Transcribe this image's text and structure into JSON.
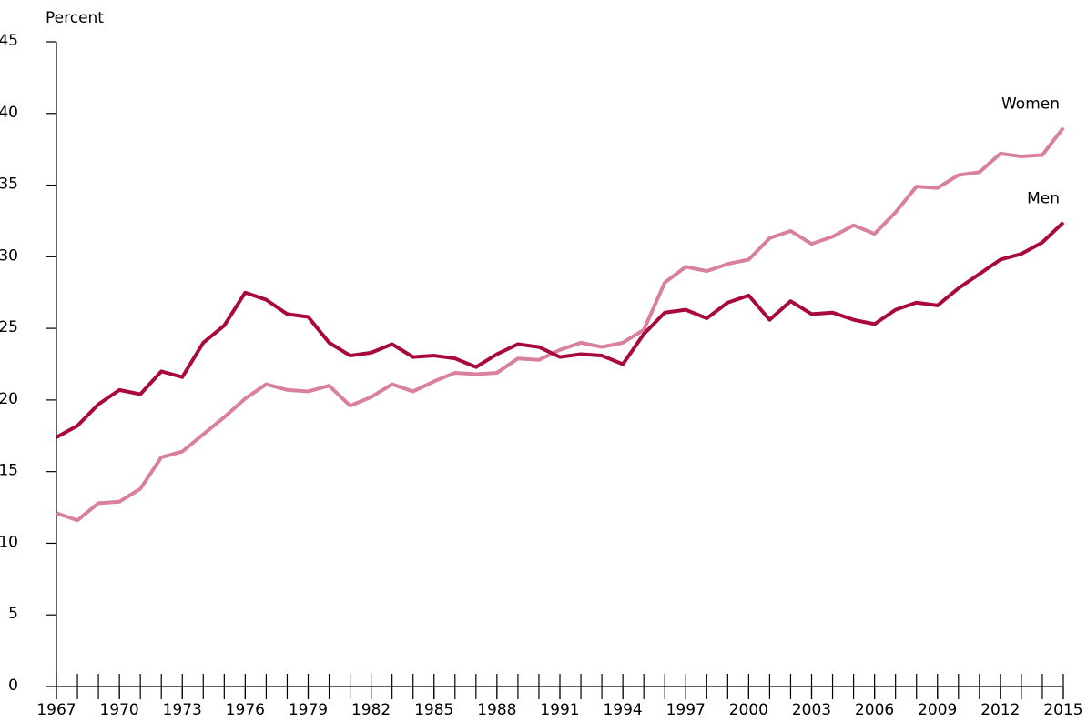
{
  "chart_data": {
    "type": "line",
    "y_label": "Percent",
    "x": [
      1967,
      1968,
      1969,
      1970,
      1971,
      1972,
      1973,
      1974,
      1975,
      1976,
      1977,
      1978,
      1979,
      1980,
      1981,
      1982,
      1983,
      1984,
      1985,
      1986,
      1987,
      1988,
      1989,
      1990,
      1991,
      1992,
      1993,
      1994,
      1995,
      1996,
      1997,
      1998,
      1999,
      2000,
      2001,
      2002,
      2003,
      2004,
      2005,
      2006,
      2007,
      2008,
      2009,
      2010,
      2011,
      2012,
      2013,
      2014,
      2015
    ],
    "series": [
      {
        "name": "Women",
        "color": "#d9809a",
        "values": [
          12.1,
          11.6,
          12.8,
          12.9,
          13.8,
          16.0,
          16.4,
          17.6,
          18.8,
          20.1,
          21.1,
          20.7,
          20.6,
          21.0,
          19.6,
          20.2,
          21.1,
          20.6,
          21.3,
          21.9,
          21.8,
          21.9,
          22.9,
          22.8,
          23.5,
          24.0,
          23.7,
          24.0,
          24.9,
          28.2,
          29.3,
          29.0,
          29.5,
          29.8,
          31.3,
          31.8,
          30.9,
          31.4,
          32.2,
          31.6,
          33.1,
          34.9,
          34.8,
          35.7,
          35.9,
          37.2,
          37.0,
          37.1,
          39.0
        ]
      },
      {
        "name": "Men",
        "color": "#a8083e",
        "values": [
          17.4,
          18.2,
          19.7,
          20.7,
          20.4,
          22.0,
          21.6,
          24.0,
          25.2,
          27.5,
          27.0,
          26.0,
          25.8,
          24.0,
          23.1,
          23.3,
          23.9,
          23.0,
          23.1,
          22.9,
          22.3,
          23.2,
          23.9,
          23.7,
          23.0,
          23.2,
          23.1,
          22.5,
          24.6,
          26.1,
          26.3,
          25.7,
          26.8,
          27.3,
          25.6,
          26.9,
          26.0,
          26.1,
          25.6,
          25.3,
          26.3,
          26.8,
          26.6,
          27.8,
          28.8,
          29.8,
          30.2,
          31.0,
          32.4
        ]
      }
    ],
    "xlim": [
      1967,
      2015
    ],
    "xticks": [
      1967,
      1970,
      1973,
      1976,
      1979,
      1982,
      1985,
      1988,
      1991,
      1994,
      1997,
      2000,
      2003,
      2006,
      2009,
      2012,
      2015
    ],
    "ylim": [
      0,
      45
    ],
    "yticks": [
      0,
      5,
      10,
      15,
      20,
      25,
      30,
      35,
      40,
      45
    ]
  }
}
